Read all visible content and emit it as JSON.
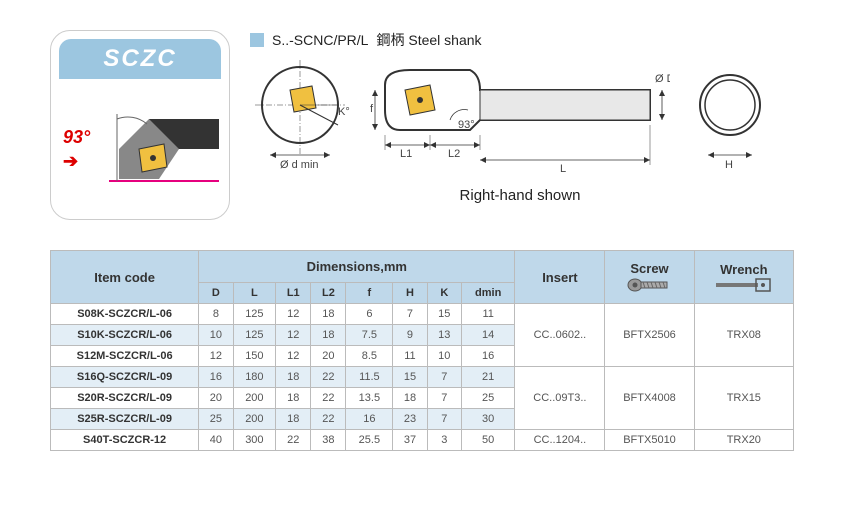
{
  "badge": "SCZC",
  "angle": "93°",
  "header_code": "S..-SCNC/PR/L",
  "header_desc": "鋼柄 Steel shank",
  "rh_label": "Right-hand shown",
  "dim_labels": {
    "d_min": "Ø d min",
    "K": "K°",
    "f": "f",
    "L1": "L1",
    "L2": "L2",
    "L": "L",
    "D": "Ø D",
    "H": "H",
    "ang93": "93°"
  },
  "table": {
    "headers": {
      "item_code": "Item code",
      "dimensions": "Dimensions,mm",
      "insert": "Insert",
      "screw": "Screw",
      "wrench": "Wrench",
      "D": "D",
      "L": "L",
      "L1": "L1",
      "L2": "L2",
      "f": "f",
      "H": "H",
      "K": "K",
      "dmin": "dmin"
    },
    "rows": [
      {
        "code": "S08K-SCZCR/L-06",
        "D": "8",
        "L": "125",
        "L1": "12",
        "L2": "18",
        "f": "6",
        "H": "7",
        "K": "15",
        "dmin": "11"
      },
      {
        "code": "S10K-SCZCR/L-06",
        "D": "10",
        "L": "125",
        "L1": "12",
        "L2": "18",
        "f": "7.5",
        "H": "9",
        "K": "13",
        "dmin": "14"
      },
      {
        "code": "S12M-SCZCR/L-06",
        "D": "12",
        "L": "150",
        "L1": "12",
        "L2": "20",
        "f": "8.5",
        "H": "11",
        "K": "10",
        "dmin": "16"
      },
      {
        "code": "S16Q-SCZCR/L-09",
        "D": "16",
        "L": "180",
        "L1": "18",
        "L2": "22",
        "f": "11.5",
        "H": "15",
        "K": "7",
        "dmin": "21"
      },
      {
        "code": "S20R-SCZCR/L-09",
        "D": "20",
        "L": "200",
        "L1": "18",
        "L2": "22",
        "f": "13.5",
        "H": "18",
        "K": "7",
        "dmin": "25"
      },
      {
        "code": "S25R-SCZCR/L-09",
        "D": "25",
        "L": "200",
        "L1": "18",
        "L2": "22",
        "f": "16",
        "H": "23",
        "K": "7",
        "dmin": "30"
      },
      {
        "code": "S40T-SCZCR-12",
        "D": "40",
        "L": "300",
        "L1": "22",
        "L2": "38",
        "f": "25.5",
        "H": "37",
        "K": "3",
        "dmin": "50"
      }
    ],
    "inserts": [
      "CC..0602..",
      "CC..09T3..",
      "CC..1204.."
    ],
    "screws": [
      "BFTX2506",
      "BFTX4008",
      "BFTX5010"
    ],
    "wrenches": [
      "TRX08",
      "TRX15",
      "TRX20"
    ]
  }
}
